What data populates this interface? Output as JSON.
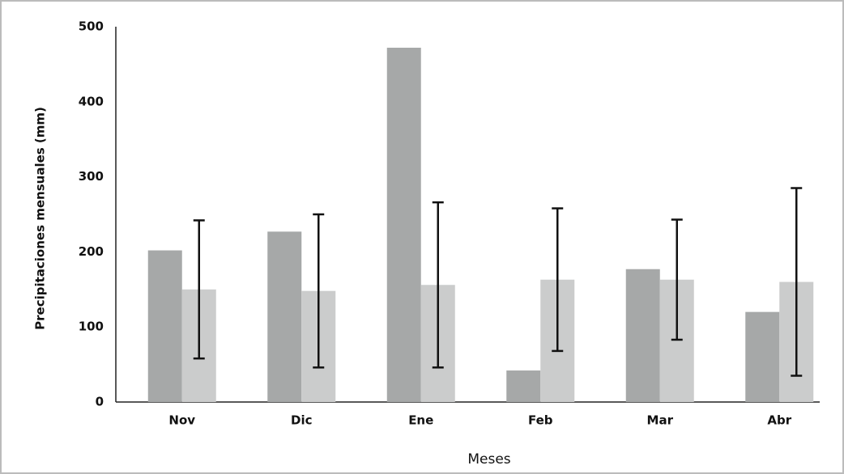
{
  "chart_data": {
    "type": "bar",
    "y_label": "Precipitaciones mensuales (mm)",
    "x_label": "Meses",
    "categories": [
      "Nov",
      "Dic",
      "Ene",
      "Feb",
      "Mar",
      "Abr"
    ],
    "series": [
      {
        "color": "#a6a8a8",
        "values": [
          202,
          227,
          472,
          42,
          177,
          120
        ]
      },
      {
        "color": "#cbcccc",
        "values": [
          150,
          148,
          156,
          163,
          163,
          160
        ],
        "errors": [
          92,
          102,
          110,
          95,
          80,
          125
        ]
      }
    ],
    "ylim": [
      0,
      500
    ],
    "yticks": [
      0,
      100,
      200,
      300,
      400,
      500
    ],
    "grid": false
  }
}
